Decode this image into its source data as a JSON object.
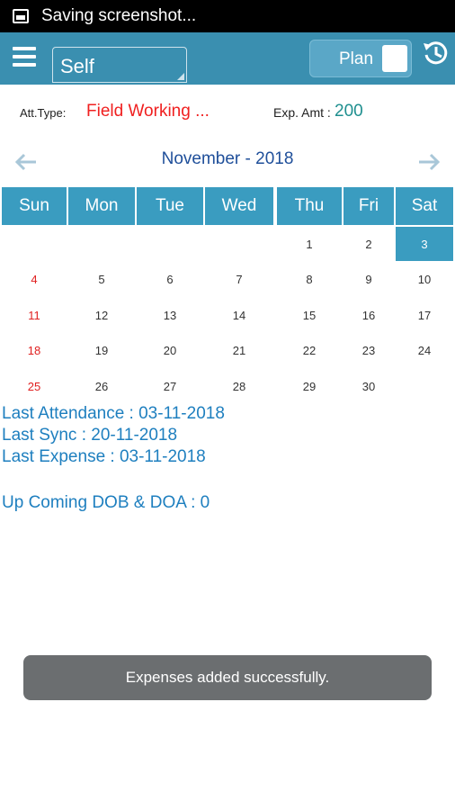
{
  "status_bar": {
    "text": "Saving screenshot..."
  },
  "app_bar": {
    "selector_value": "Self",
    "plan_label": "Plan"
  },
  "info": {
    "att_label": "Att.Type:",
    "att_value": "Field Working ...",
    "exp_label": "Exp. Amt :",
    "exp_value": "200"
  },
  "calendar": {
    "month_title": "November - 2018",
    "day_headers": [
      "Sun",
      "Mon",
      "Tue",
      "Wed",
      "Thu",
      "Fri",
      "Sat"
    ],
    "weeks": [
      [
        "",
        "",
        "",
        "",
        "1",
        "2",
        "3"
      ],
      [
        "4",
        "5",
        "6",
        "7",
        "8",
        "9",
        "10"
      ],
      [
        "11",
        "12",
        "13",
        "14",
        "15",
        "16",
        "17"
      ],
      [
        "18",
        "19",
        "20",
        "21",
        "22",
        "23",
        "24"
      ],
      [
        "25",
        "26",
        "27",
        "28",
        "29",
        "30",
        ""
      ]
    ],
    "selected_day": "3"
  },
  "stats": {
    "last_attendance": "Last Attendance : 03-11-2018",
    "last_sync": "Last Sync : 20-11-2018",
    "last_expense": "Last Expense : 03-11-2018",
    "upcoming": "Up Coming DOB & DOA : 0"
  },
  "toast": {
    "message": "Expenses added successfully."
  }
}
